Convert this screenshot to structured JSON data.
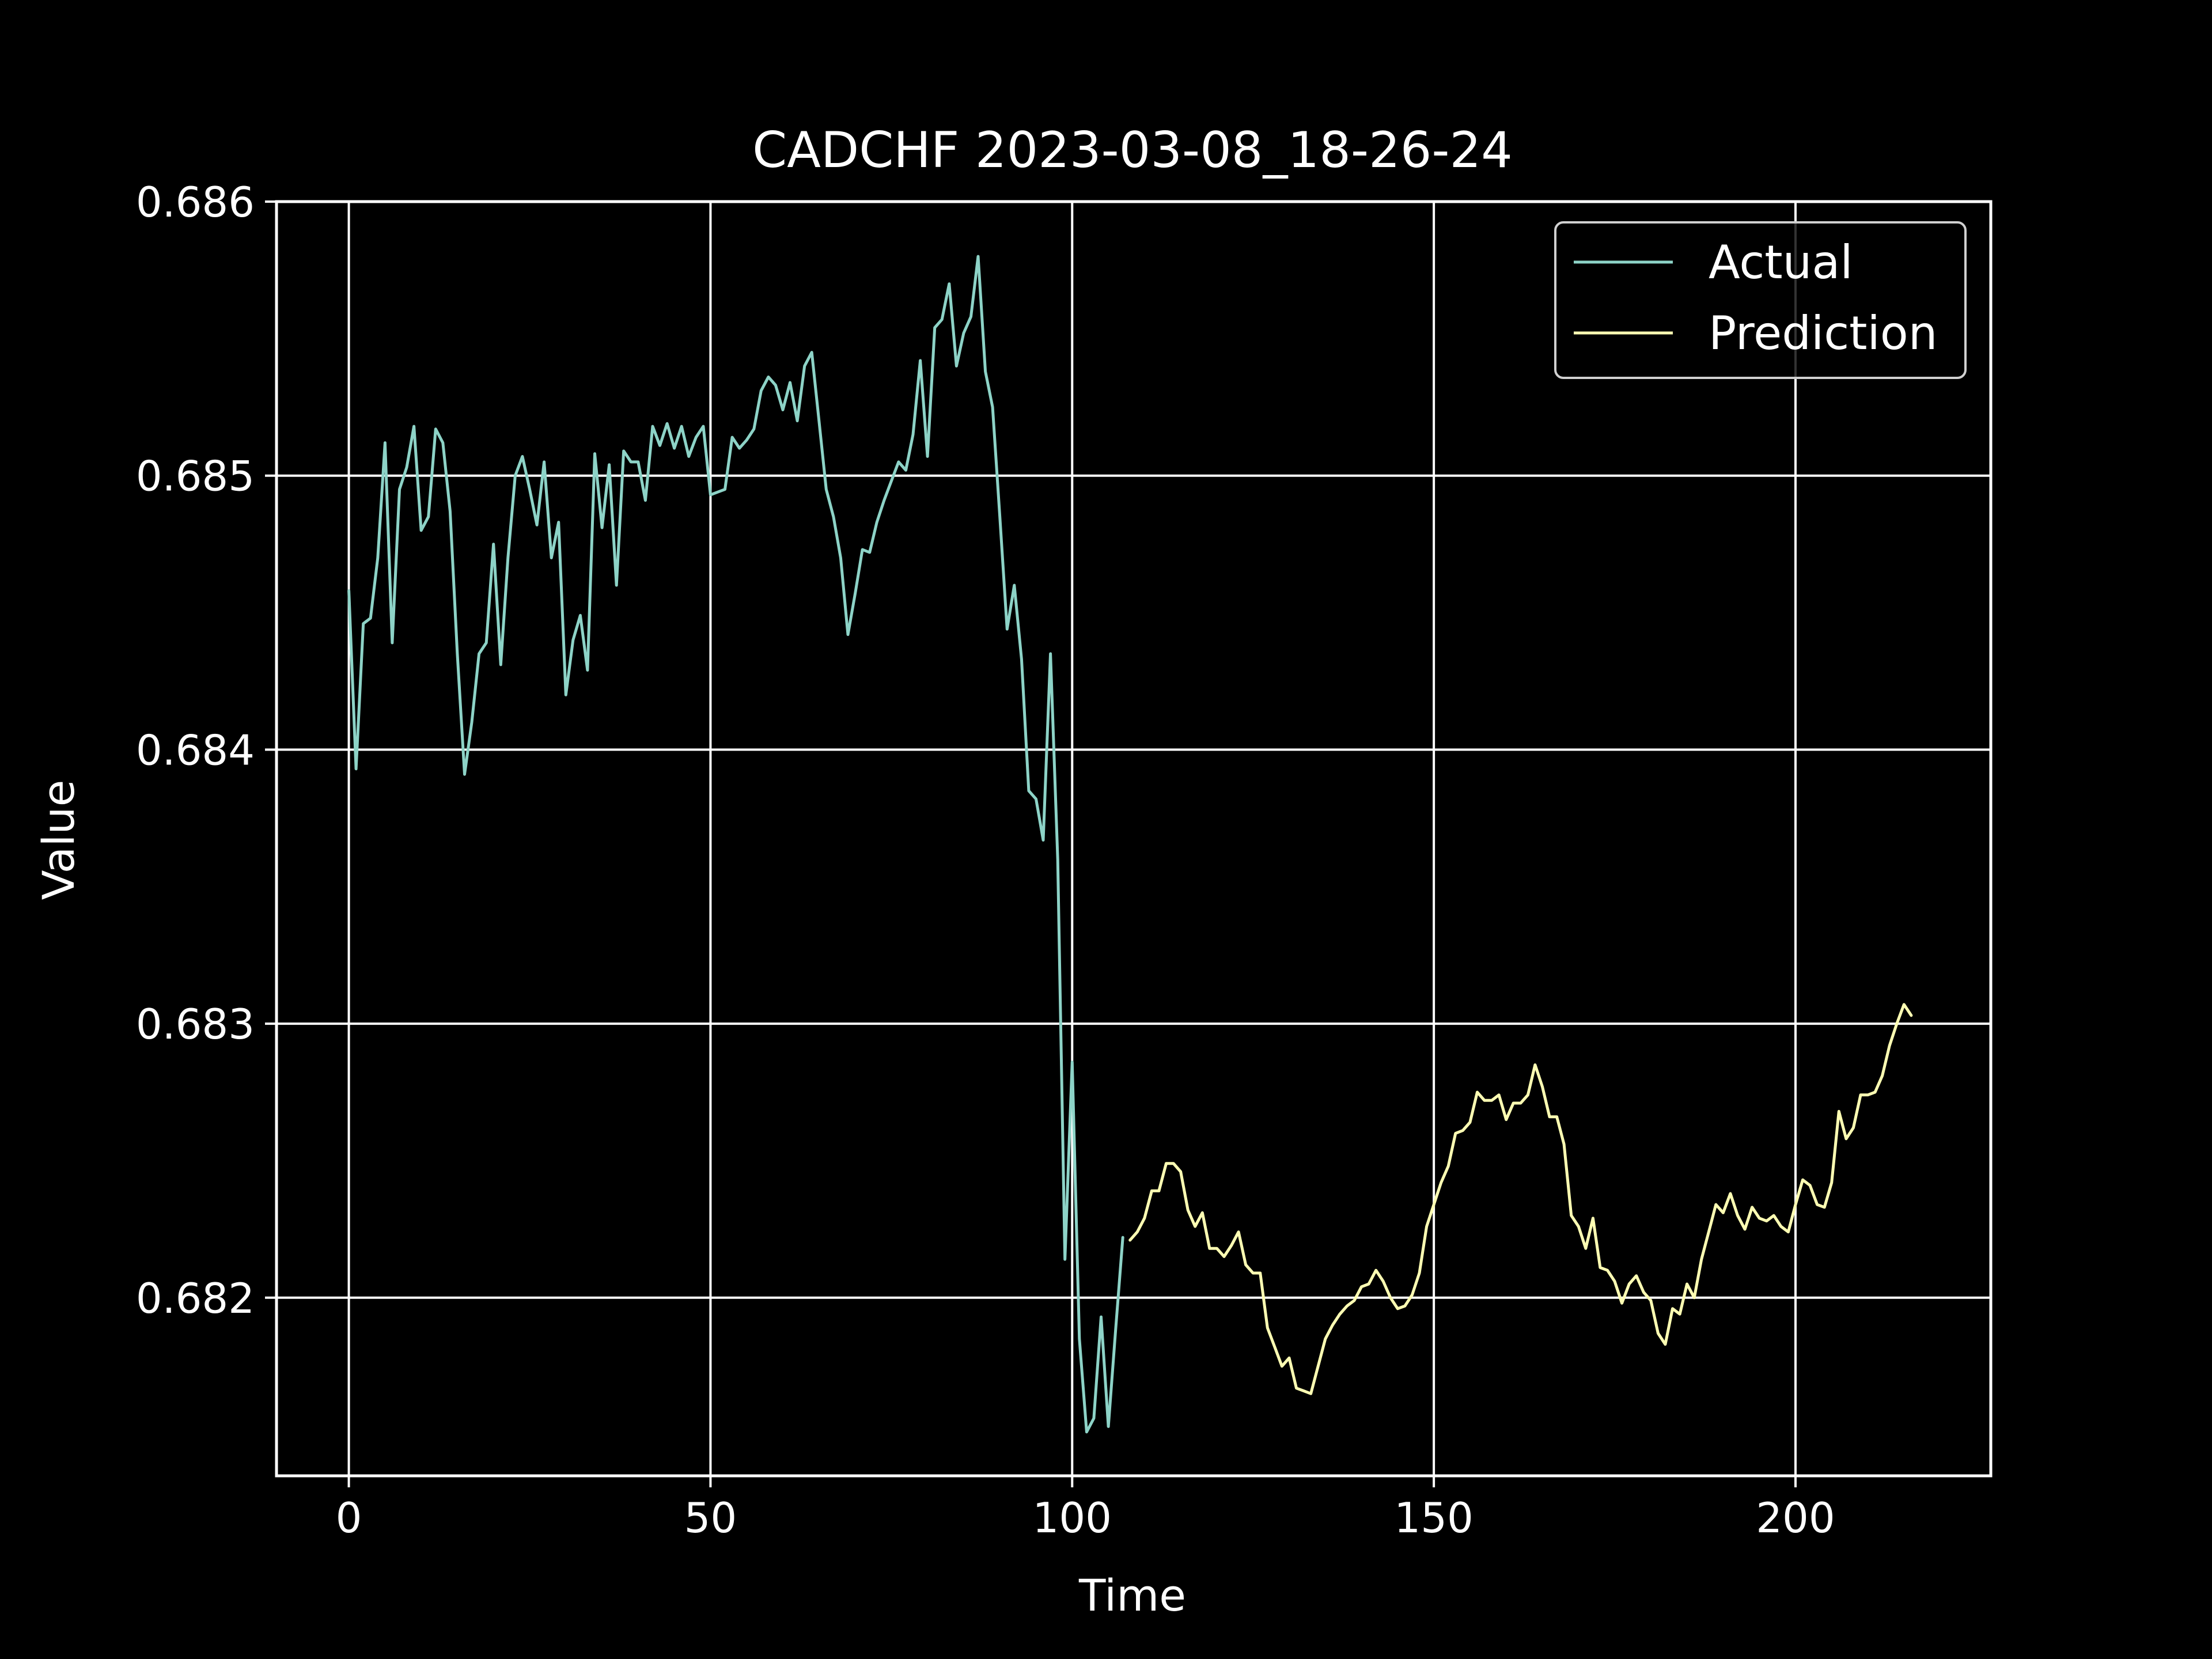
{
  "chart_data": {
    "type": "line",
    "title": "CADCHF 2023-03-08_18-26-24",
    "xlabel": "Time",
    "ylabel": "Value",
    "xlim": [
      -10,
      227
    ],
    "ylim": [
      0.68135,
      0.686
    ],
    "grid": true,
    "legend_position": "top-right",
    "xticks": [
      0,
      50,
      100,
      150,
      200
    ],
    "xtick_labels": [
      "0",
      "50",
      "100",
      "150",
      "200"
    ],
    "yticks": [
      0.682,
      0.683,
      0.684,
      0.685,
      0.686
    ],
    "ytick_labels": [
      "0.682",
      "0.683",
      "0.684",
      "0.685",
      "0.686"
    ],
    "colors": {
      "background": "#000000",
      "axes": "#ffffff",
      "actual": "#8dd3c7",
      "prediction": "#ffffb3"
    },
    "series": [
      {
        "name": "Actual",
        "x_start": 0,
        "values": [
          0.68458,
          0.68393,
          0.68446,
          0.68448,
          0.6847,
          0.68512,
          0.68439,
          0.68495,
          0.68503,
          0.68518,
          0.6848,
          0.68485,
          0.68517,
          0.68512,
          0.68487,
          0.68435,
          0.68391,
          0.6841,
          0.68435,
          0.68439,
          0.68475,
          0.68431,
          0.6847,
          0.685,
          0.68507,
          0.68495,
          0.68482,
          0.68505,
          0.6847,
          0.68483,
          0.6842,
          0.6844,
          0.68449,
          0.68429,
          0.68508,
          0.68481,
          0.68504,
          0.6846,
          0.68509,
          0.68505,
          0.68505,
          0.68491,
          0.68518,
          0.68511,
          0.68519,
          0.6851,
          0.68518,
          0.68507,
          0.68514,
          0.68518,
          0.68493,
          0.68494,
          0.68495,
          0.68514,
          0.6851,
          0.68513,
          0.68517,
          0.68531,
          0.68536,
          0.68533,
          0.68524,
          0.68534,
          0.6852,
          0.6854,
          0.68545,
          0.6852,
          0.68495,
          0.68485,
          0.6847,
          0.68442,
          0.68457,
          0.68473,
          0.68472,
          0.68483,
          0.68491,
          0.68498,
          0.68505,
          0.68502,
          0.68515,
          0.68542,
          0.68507,
          0.68554,
          0.68557,
          0.6857,
          0.6854,
          0.68552,
          0.68558,
          0.6858,
          0.68538,
          0.68525,
          0.68485,
          0.68444,
          0.6846,
          0.68433,
          0.68385,
          0.68382,
          0.68367,
          0.68435,
          0.6836,
          0.68214,
          0.68286,
          0.68185,
          0.68151,
          0.68156,
          0.68193,
          0.68153,
          0.68188,
          0.68222
        ]
      },
      {
        "name": "Prediction",
        "x_start": 108,
        "values": [
          0.68221,
          0.68224,
          0.68229,
          0.68239,
          0.68239,
          0.68249,
          0.68249,
          0.68246,
          0.68232,
          0.68226,
          0.68231,
          0.68218,
          0.68218,
          0.68215,
          0.68219,
          0.68224,
          0.68212,
          0.68209,
          0.68209,
          0.68189,
          0.68182,
          0.68175,
          0.68178,
          0.68167,
          0.68166,
          0.68165,
          0.68175,
          0.68185,
          0.6819,
          0.68194,
          0.68197,
          0.68199,
          0.68204,
          0.68205,
          0.6821,
          0.68206,
          0.682,
          0.68196,
          0.68197,
          0.68201,
          0.68209,
          0.68226,
          0.68234,
          0.68242,
          0.68248,
          0.6826,
          0.68261,
          0.68264,
          0.68275,
          0.68272,
          0.68272,
          0.68274,
          0.68265,
          0.68271,
          0.68271,
          0.68274,
          0.68285,
          0.68277,
          0.68266,
          0.68266,
          0.68256,
          0.6823,
          0.68226,
          0.68218,
          0.68229,
          0.68211,
          0.6821,
          0.68206,
          0.68198,
          0.68205,
          0.68208,
          0.68202,
          0.68199,
          0.68187,
          0.68183,
          0.68196,
          0.68194,
          0.68205,
          0.682,
          0.68214,
          0.68224,
          0.68234,
          0.68231,
          0.68238,
          0.6823,
          0.68225,
          0.68233,
          0.68229,
          0.68228,
          0.6823,
          0.68226,
          0.68224,
          0.68234,
          0.68243,
          0.68241,
          0.68234,
          0.68233,
          0.68242,
          0.68268,
          0.68258,
          0.68262,
          0.68274,
          0.68274,
          0.68275,
          0.68281,
          0.68292,
          0.683,
          0.68307,
          0.68303
        ]
      }
    ]
  }
}
